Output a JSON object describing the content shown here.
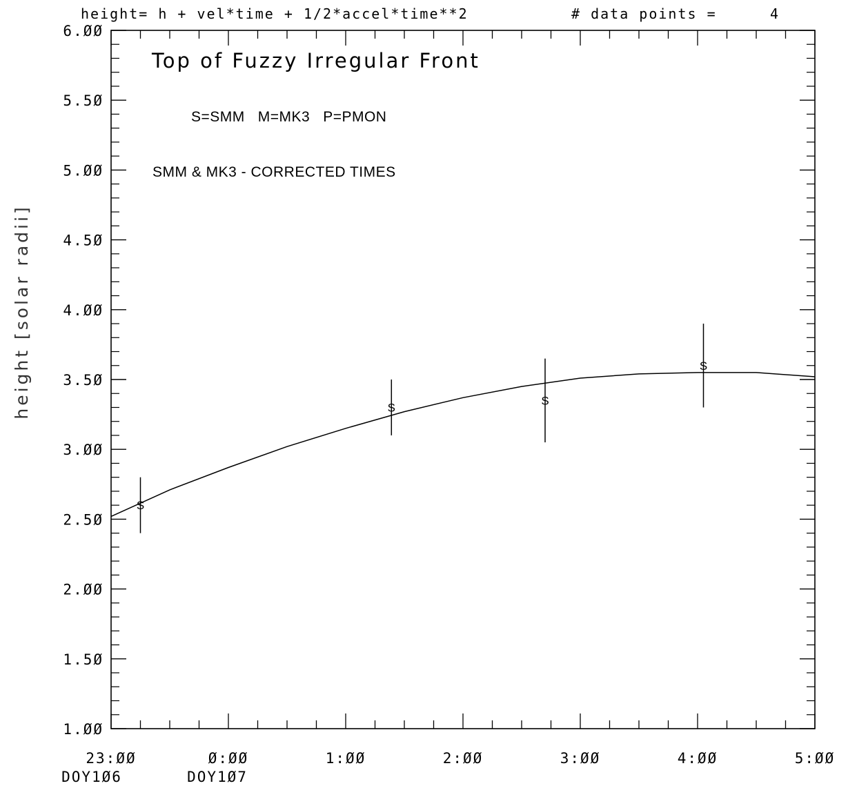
{
  "header": {
    "equation": "height= h + vel*time + 1/2*accel*time**2",
    "points_label": "# data points =",
    "points_count": "4"
  },
  "chart_data": {
    "type": "scatter",
    "title": "Top of Fuzzy Irregular Front",
    "legend_text": "S=SMM   M=MK3   P=PMON",
    "note": "SMM & MK3 - CORRECTED TIMES",
    "ylabel": "height [solar radii]",
    "xlabel": "",
    "ylim": [
      1.0,
      6.0
    ],
    "xlim": [
      -1.0,
      5.0
    ],
    "x_unit": "hours",
    "y_ticks": [
      "1.ØØ",
      "1.5Ø",
      "2.ØØ",
      "2.5Ø",
      "3.ØØ",
      "3.5Ø",
      "4.ØØ",
      "4.5Ø",
      "5.ØØ",
      "5.5Ø",
      "6.ØØ"
    ],
    "x_ticks": [
      {
        "label": "23:ØØ",
        "sub": "DOY1Ø6"
      },
      {
        "label": "Ø:ØØ",
        "sub": "DOY1Ø7"
      },
      {
        "label": "1:ØØ",
        "sub": ""
      },
      {
        "label": "2:ØØ",
        "sub": ""
      },
      {
        "label": "3:ØØ",
        "sub": ""
      },
      {
        "label": "4:ØØ",
        "sub": ""
      },
      {
        "label": "5:ØØ",
        "sub": ""
      }
    ],
    "series": [
      {
        "marker": "S",
        "x": [
          -0.75,
          1.39,
          2.7,
          4.05
        ],
        "y": [
          2.6,
          3.3,
          3.35,
          3.6
        ],
        "err_low": [
          2.4,
          3.1,
          3.05,
          3.3
        ],
        "err_high": [
          2.8,
          3.5,
          3.65,
          3.9
        ]
      }
    ],
    "fit": {
      "x": [
        -1.0,
        -0.5,
        0.0,
        0.5,
        1.0,
        1.5,
        2.0,
        2.5,
        3.0,
        3.5,
        4.0,
        4.5,
        5.0
      ],
      "y": [
        2.52,
        2.71,
        2.87,
        3.02,
        3.15,
        3.27,
        3.37,
        3.45,
        3.51,
        3.54,
        3.55,
        3.55,
        3.52
      ]
    },
    "grid": false
  }
}
